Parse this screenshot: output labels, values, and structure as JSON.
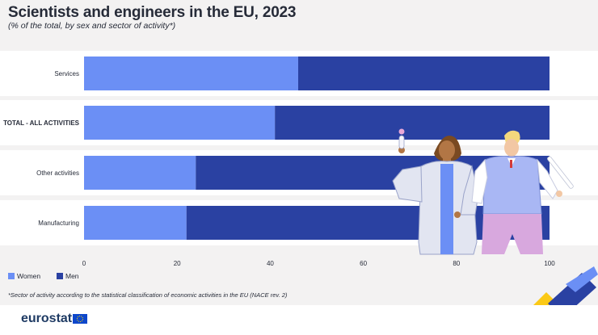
{
  "header": {
    "title": "Scientists and engineers in the EU, 2023",
    "subtitle": "(% of the total, by sex and sector of activity*)"
  },
  "chart_data": {
    "type": "bar",
    "orientation": "horizontal",
    "stacked": true,
    "categories": [
      "Services",
      "TOTAL - ALL ACTIVITIES",
      "Other activities",
      "Manufacturing"
    ],
    "bold_categories": [
      "TOTAL - ALL ACTIVITIES"
    ],
    "series": [
      {
        "name": "Women",
        "color": "#6b8ff5",
        "values": [
          46,
          41,
          24,
          22
        ]
      },
      {
        "name": "Men",
        "color": "#2a41a2",
        "values": [
          54,
          59,
          76,
          78
        ]
      }
    ],
    "xlim": [
      0,
      100
    ],
    "xticks": [
      "0",
      "20",
      "40",
      "60",
      "80",
      "100"
    ],
    "legend_position": "bottom-left"
  },
  "legend": {
    "women_label": "Women",
    "men_label": "Men"
  },
  "footnote": "*Sector of activity according to the statistical classification of economic activities in the EU (NACE rev. 2)",
  "brand": {
    "logo_text": "eurostat",
    "flag_color": "#0e47cb",
    "star_color": "#ffdd00",
    "ribbon_yellow": "#fbc916",
    "ribbon_blue": "#2a41a2"
  }
}
